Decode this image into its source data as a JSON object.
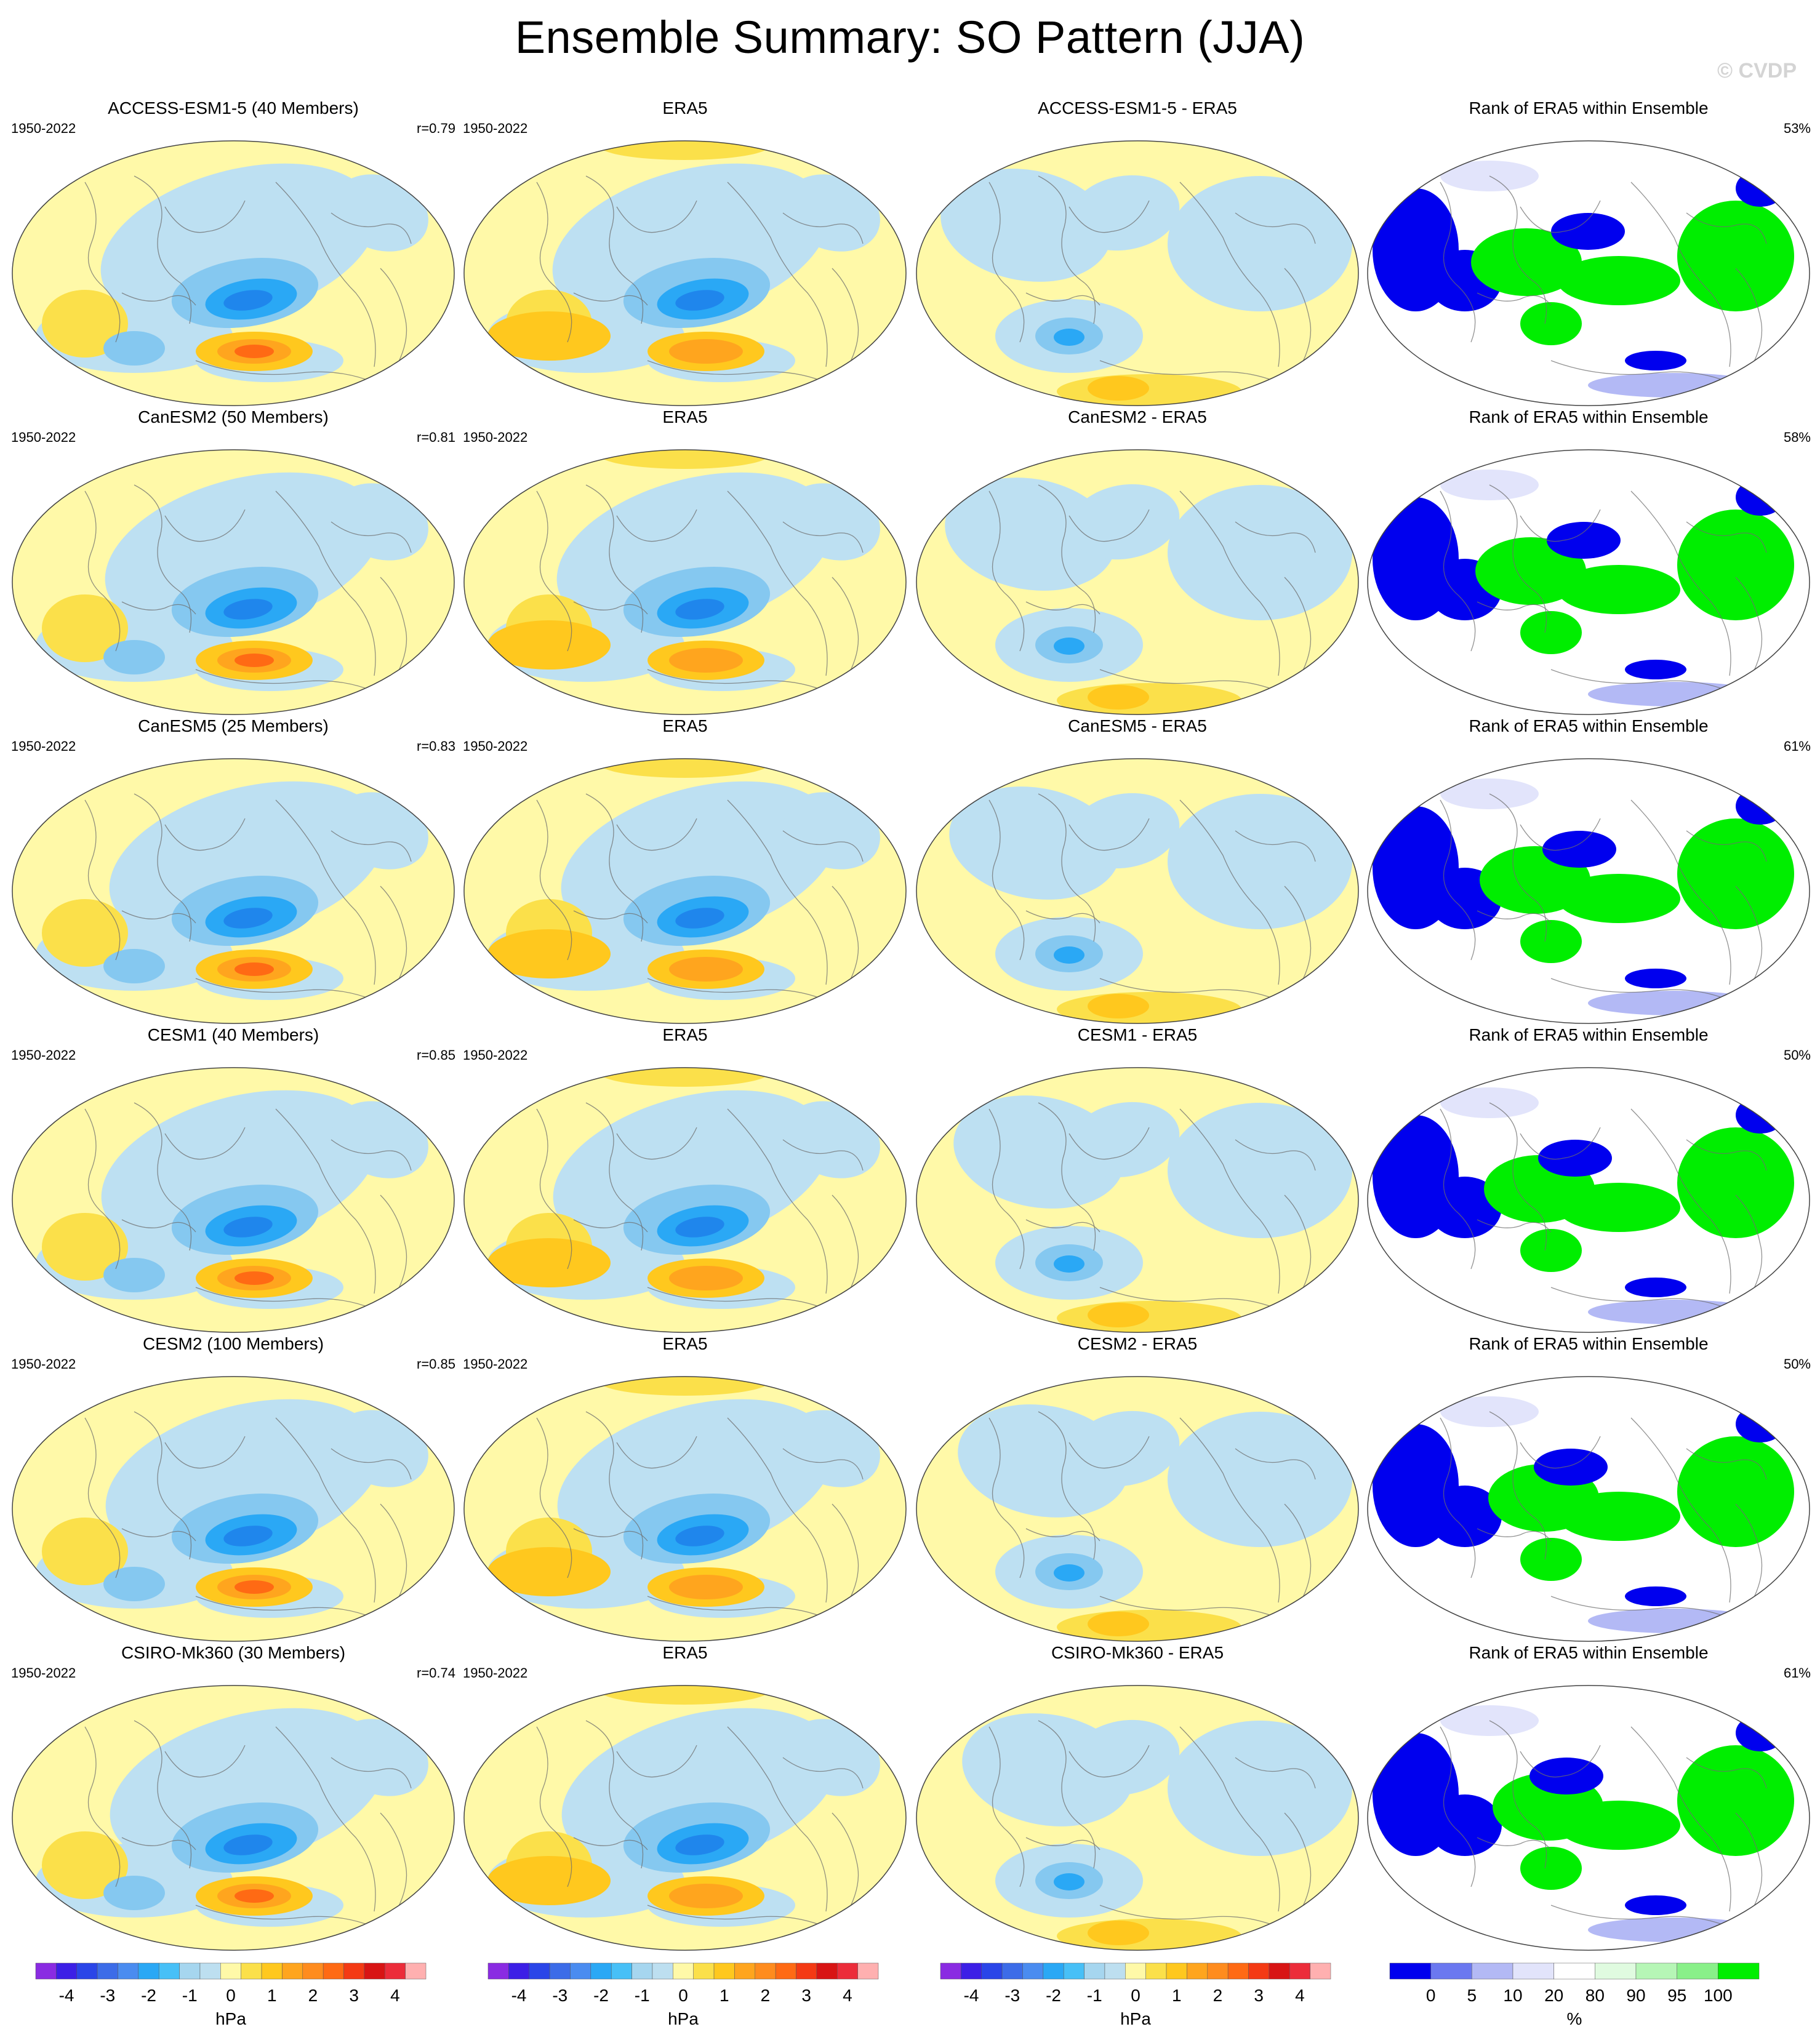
{
  "title": "Ensemble Summary: SO Pattern (JJA)",
  "watermark": "© CVDP",
  "rows": [
    {
      "model_title": "ACCESS-ESM1-5 (40 Members)",
      "years": "1950-2022",
      "r": "r=0.79",
      "obs_title": "ERA5",
      "obs_years": "1950-2022",
      "diff_title": "ACCESS-ESM1-5 - ERA5",
      "rank_title": "Rank of ERA5 within Ensemble",
      "rank_pct": "53%"
    },
    {
      "model_title": "CanESM2 (50 Members)",
      "years": "1950-2022",
      "r": "r=0.81",
      "obs_title": "ERA5",
      "obs_years": "1950-2022",
      "diff_title": "CanESM2 - ERA5",
      "rank_title": "Rank of ERA5 within Ensemble",
      "rank_pct": "58%"
    },
    {
      "model_title": "CanESM5 (25 Members)",
      "years": "1950-2022",
      "r": "r=0.83",
      "obs_title": "ERA5",
      "obs_years": "1950-2022",
      "diff_title": "CanESM5 - ERA5",
      "rank_title": "Rank of ERA5 within Ensemble",
      "rank_pct": "61%"
    },
    {
      "model_title": "CESM1 (40 Members)",
      "years": "1950-2022",
      "r": "r=0.85",
      "obs_title": "ERA5",
      "obs_years": "1950-2022",
      "diff_title": "CESM1 - ERA5",
      "rank_title": "Rank of ERA5 within Ensemble",
      "rank_pct": "50%"
    },
    {
      "model_title": "CESM2 (100 Members)",
      "years": "1950-2022",
      "r": "r=0.85",
      "obs_title": "ERA5",
      "obs_years": "1950-2022",
      "diff_title": "CESM2 - ERA5",
      "rank_title": "Rank of ERA5 within Ensemble",
      "rank_pct": "50%"
    },
    {
      "model_title": "CSIRO-Mk360 (30 Members)",
      "years": "1950-2022",
      "r": "r=0.74",
      "obs_title": "ERA5",
      "obs_years": "1950-2022",
      "diff_title": "CSIRO-Mk360 - ERA5",
      "rank_title": "Rank of ERA5 within Ensemble",
      "rank_pct": "61%"
    }
  ],
  "colorbars": {
    "hpa": {
      "unit": "hPa",
      "tick_labels": [
        "-4",
        "-3",
        "-2",
        "-1",
        "0",
        "1",
        "2",
        "3",
        "4"
      ],
      "colors": [
        "#8a2be2",
        "#3c1fe6",
        "#2a45e8",
        "#3c6ce8",
        "#4a8cf0",
        "#2aa8f5",
        "#47c0f7",
        "#a6d6ef",
        "#bddff0",
        "#fff9a8",
        "#fbe04a",
        "#ffc81e",
        "#ffa51e",
        "#ff8c1e",
        "#ff6a14",
        "#f43a14",
        "#d81414",
        "#ec2c3a",
        "#ffb0b0"
      ]
    },
    "rank": {
      "unit": "%",
      "tick_labels": [
        "0",
        "5",
        "10",
        "20",
        "80",
        "90",
        "95",
        "100"
      ],
      "colors": [
        "#0000ee",
        "#6b78f0",
        "#b3b9f5",
        "#e2e4fb",
        "#ffffff",
        "#e0fbe0",
        "#b6f6b6",
        "#89f089",
        "#00ee00"
      ]
    }
  },
  "chart_data": [
    {
      "type": "heatmap",
      "title": "Ensemble Summary: SO Pattern (JJA)",
      "description_of_panels": [
        "ensemble mean pattern",
        "ERA5 pattern",
        "model minus ERA5",
        "rank of ERA5 within ensemble"
      ],
      "units": "hPa",
      "color_scale": [
        -4,
        -3.5,
        -3,
        -2.5,
        -2,
        -1.5,
        -1,
        -0.5,
        0,
        0.5,
        1,
        1.5,
        2,
        2.5,
        3,
        3.5,
        4
      ],
      "pattern_correlations": [
        {
          "model": "ACCESS-ESM1-5",
          "members": 40,
          "r": 0.79,
          "rank_pct": 53
        },
        {
          "model": "CanESM2",
          "members": 50,
          "r": 0.81,
          "rank_pct": 58
        },
        {
          "model": "CanESM5",
          "members": 25,
          "r": 0.83,
          "rank_pct": 61
        },
        {
          "model": "CESM1",
          "members": 40,
          "r": 0.85,
          "rank_pct": 50
        },
        {
          "model": "CESM2",
          "members": 100,
          "r": 0.85,
          "rank_pct": 50
        },
        {
          "model": "CSIRO-Mk360",
          "members": 30,
          "r": 0.74,
          "rank_pct": 61
        }
      ],
      "rank_scale_pct": [
        0,
        5,
        10,
        20,
        80,
        90,
        95,
        100
      ]
    }
  ]
}
